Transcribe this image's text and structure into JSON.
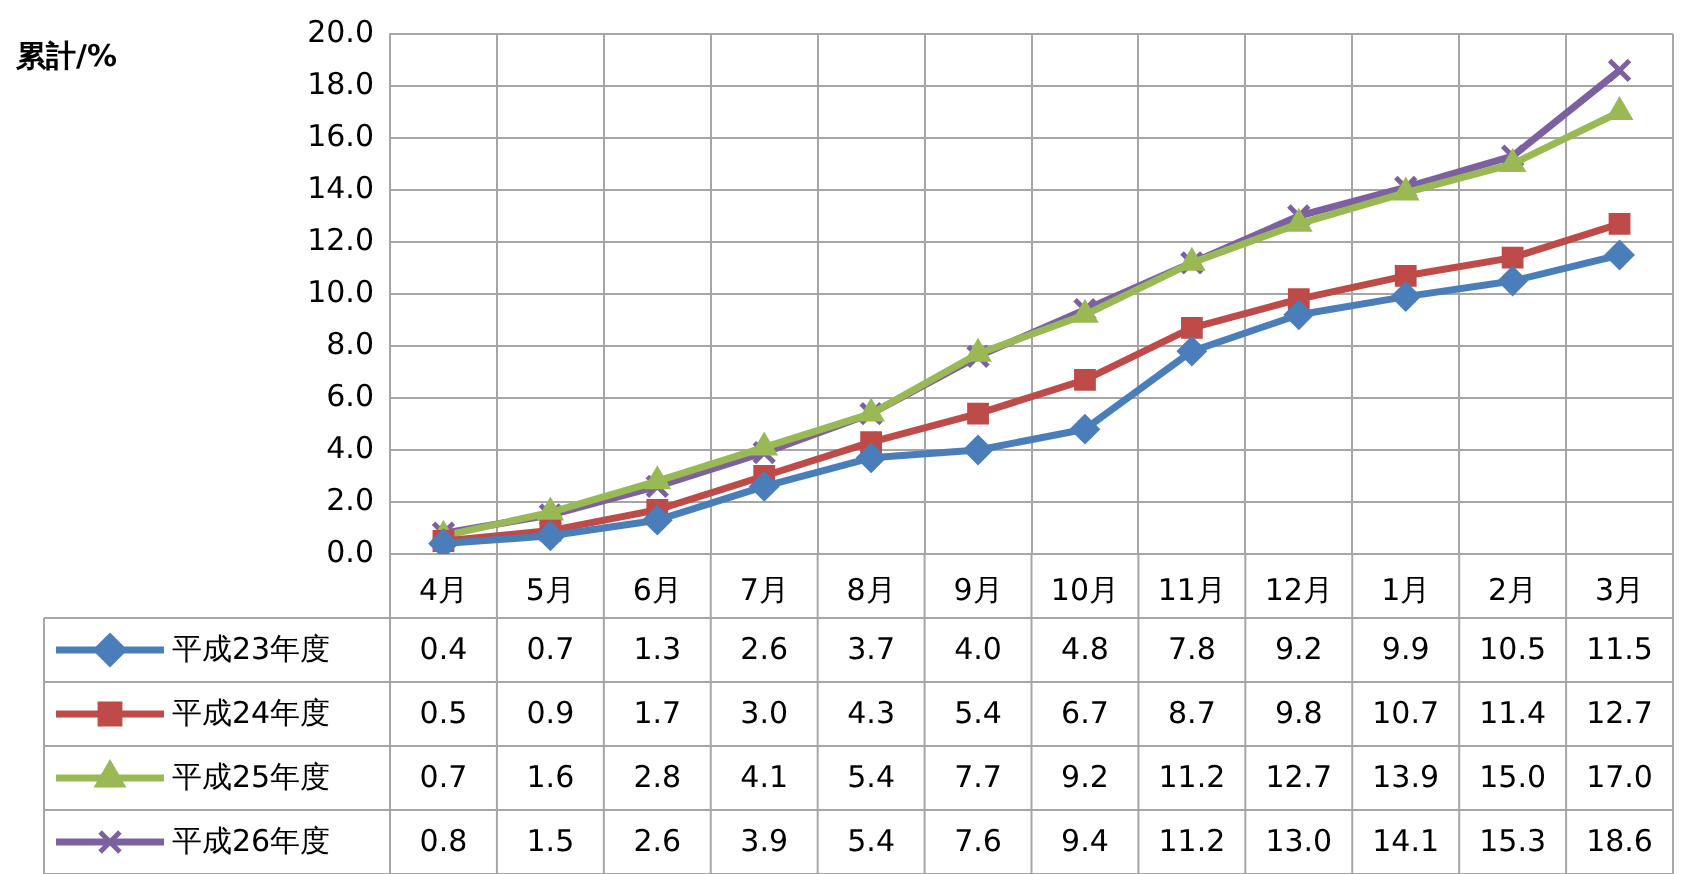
{
  "chart_data": {
    "type": "line",
    "annotations": [
      "累計/%"
    ],
    "categories": [
      "4月",
      "5月",
      "6月",
      "7月",
      "8月",
      "9月",
      "10月",
      "11月",
      "12月",
      "1月",
      "2月",
      "3月"
    ],
    "series": [
      {
        "name": "平成23年度",
        "color": "#4a7ebb",
        "marker": "diamond",
        "values": [
          0.4,
          0.7,
          1.3,
          2.6,
          3.7,
          4.0,
          4.8,
          7.8,
          9.2,
          9.9,
          10.5,
          11.5
        ],
        "value_labels": [
          "0.4",
          "0.7",
          "1.3",
          "2.6",
          "3.7",
          "4.0",
          "4.8",
          "7.8",
          "9.2",
          "9.9",
          "10.5",
          "11.5"
        ]
      },
      {
        "name": "平成24年度",
        "color": "#be4b48",
        "marker": "square",
        "values": [
          0.5,
          0.9,
          1.7,
          3.0,
          4.3,
          5.4,
          6.7,
          8.7,
          9.8,
          10.7,
          11.4,
          12.7
        ],
        "value_labels": [
          "0.5",
          "0.9",
          "1.7",
          "3.0",
          "4.3",
          "5.4",
          "6.7",
          "8.7",
          "9.8",
          "10.7",
          "11.4",
          "12.7"
        ]
      },
      {
        "name": "平成25年度",
        "color": "#98b954",
        "marker": "triangle",
        "values": [
          0.7,
          1.6,
          2.8,
          4.1,
          5.4,
          7.7,
          9.2,
          11.2,
          12.7,
          13.9,
          15.0,
          17.0
        ],
        "value_labels": [
          "0.7",
          "1.6",
          "2.8",
          "4.1",
          "5.4",
          "7.7",
          "9.2",
          "11.2",
          "12.7",
          "13.9",
          "15.0",
          "17.0"
        ]
      },
      {
        "name": "平成26年度",
        "color": "#7d60a0",
        "marker": "cross",
        "values": [
          0.8,
          1.5,
          2.6,
          3.9,
          5.4,
          7.6,
          9.4,
          11.2,
          13.0,
          14.1,
          15.3,
          18.6
        ],
        "value_labels": [
          "0.8",
          "1.5",
          "2.6",
          "3.9",
          "5.4",
          "7.6",
          "9.4",
          "11.2",
          "13.0",
          "14.1",
          "15.3",
          "18.6"
        ]
      }
    ],
    "ylim": [
      0,
      20
    ],
    "yticks": [
      {
        "value": 0,
        "label": "0.0"
      },
      {
        "value": 2,
        "label": "2.0"
      },
      {
        "value": 4,
        "label": "4.0"
      },
      {
        "value": 6,
        "label": "6.0"
      },
      {
        "value": 8,
        "label": "8.0"
      },
      {
        "value": 10,
        "label": "10.0"
      },
      {
        "value": 12,
        "label": "12.0"
      },
      {
        "value": 14,
        "label": "14.0"
      },
      {
        "value": 16,
        "label": "16.0"
      },
      {
        "value": 18,
        "label": "18.0"
      },
      {
        "value": 20,
        "label": "20.0"
      }
    ],
    "grid": true,
    "legend": "bottom",
    "line_style": "solid"
  }
}
